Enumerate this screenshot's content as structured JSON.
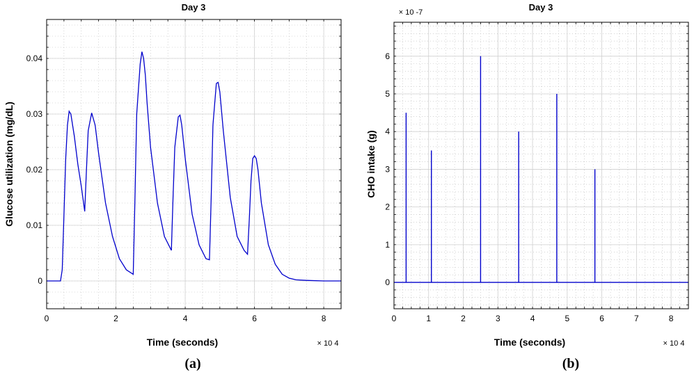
{
  "chart_data": [
    {
      "type": "line",
      "title": "Day 3",
      "xlabel": "Time (seconds)",
      "ylabel": "Glucose utilization (mg/dL)",
      "x_multiplier": "× 10 4",
      "panel_label": "(a)",
      "xlim": [
        0,
        8.5
      ],
      "ylim": [
        -0.005,
        0.047
      ],
      "x_ticks": [
        "0",
        "2",
        "4",
        "6",
        "8"
      ],
      "x_tick_values": [
        0,
        2,
        4,
        6,
        8
      ],
      "y_ticks": [
        "0",
        "0.01",
        "0.02",
        "0.03",
        "0.04"
      ],
      "y_tick_values": [
        0,
        0.01,
        0.02,
        0.03,
        0.04
      ],
      "grid": true,
      "line_color": "#0000cc",
      "series": [
        {
          "x": [
            0,
            0.4,
            0.45,
            0.5,
            0.55,
            0.6,
            0.65,
            0.7,
            0.8,
            0.9,
            1.0,
            1.1,
            1.15,
            1.2,
            1.3,
            1.4,
            1.5,
            1.7,
            1.9,
            2.1,
            2.3,
            2.5,
            2.55,
            2.6,
            2.7,
            2.75,
            2.8,
            2.85,
            2.9,
            3.0,
            3.2,
            3.4,
            3.6,
            3.65,
            3.7,
            3.8,
            3.85,
            3.9,
            4.0,
            4.2,
            4.4,
            4.6,
            4.7,
            4.75,
            4.8,
            4.9,
            4.95,
            5.0,
            5.1,
            5.3,
            5.5,
            5.7,
            5.8,
            5.85,
            5.9,
            5.95,
            6.0,
            6.05,
            6.1,
            6.2,
            6.4,
            6.6,
            6.8,
            7.0,
            7.2,
            7.5,
            8.0,
            8.5
          ],
          "y": [
            0,
            0,
            0.002,
            0.012,
            0.022,
            0.028,
            0.0305,
            0.03,
            0.026,
            0.021,
            0.017,
            0.0125,
            0.02,
            0.027,
            0.0302,
            0.028,
            0.023,
            0.014,
            0.008,
            0.004,
            0.002,
            0.0012,
            0.015,
            0.03,
            0.039,
            0.0412,
            0.04,
            0.037,
            0.032,
            0.024,
            0.014,
            0.008,
            0.0055,
            0.015,
            0.024,
            0.0295,
            0.0298,
            0.028,
            0.022,
            0.012,
            0.0065,
            0.004,
            0.0038,
            0.015,
            0.028,
            0.0355,
            0.0357,
            0.034,
            0.027,
            0.015,
            0.008,
            0.0055,
            0.0048,
            0.011,
            0.018,
            0.022,
            0.0225,
            0.022,
            0.02,
            0.014,
            0.0065,
            0.003,
            0.0012,
            0.0005,
            0.0002,
            0.0001,
            0,
            0
          ]
        }
      ]
    },
    {
      "type": "stem",
      "title": "Day 3",
      "xlabel": "Time (seconds)",
      "ylabel": "CHO intake (g)",
      "x_multiplier": "× 10 4",
      "y_multiplier": "× 10 -7",
      "panel_label": "(b)",
      "xlim": [
        0,
        8.5
      ],
      "ylim": [
        -0.7,
        6.9
      ],
      "x_ticks": [
        "0",
        "1",
        "2",
        "3",
        "4",
        "5",
        "6",
        "7",
        "8"
      ],
      "x_tick_values": [
        0,
        1,
        2,
        3,
        4,
        5,
        6,
        7,
        8
      ],
      "y_ticks": [
        "0",
        "1",
        "2",
        "3",
        "4",
        "5",
        "6"
      ],
      "y_tick_values": [
        0,
        1,
        2,
        3,
        4,
        5,
        6
      ],
      "grid": true,
      "line_color": "#0000cc",
      "series": [
        {
          "x": [
            0.35,
            1.08,
            2.5,
            3.6,
            4.7,
            5.8
          ],
          "y": [
            4.5,
            3.5,
            6.0,
            4.0,
            5.0,
            3.0
          ]
        }
      ]
    }
  ]
}
